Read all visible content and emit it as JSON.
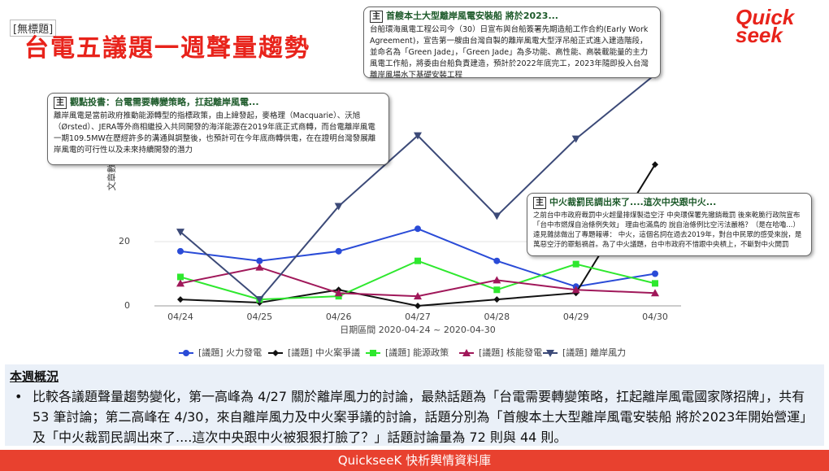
{
  "header": {
    "tag": "[無標題]",
    "title": "台電五議題一週聲量趨勢",
    "logo": "Quick seek"
  },
  "chart_data": {
    "type": "line",
    "categories": [
      "04/24",
      "04/25",
      "04/26",
      "04/27",
      "04/28",
      "04/29",
      "04/30"
    ],
    "ylabel": "文章數",
    "xlabel": "日期區間 2020-04-24 ~ 2020-04-30",
    "ylim": [
      0,
      80
    ],
    "yticks": [
      0,
      20
    ],
    "grid": true,
    "legend": "bottom",
    "series": [
      {
        "name": "[議題] 火力發電",
        "color": "#2a4bd7",
        "marker": "circle",
        "values": [
          17,
          14,
          17,
          24,
          14,
          6,
          10
        ]
      },
      {
        "name": "[議題] 中火案爭議",
        "color": "#111111",
        "marker": "diamond",
        "values": [
          2,
          1,
          5,
          0,
          2,
          4,
          44
        ]
      },
      {
        "name": "[議題] 能源政策",
        "color": "#2ee82e",
        "marker": "square",
        "values": [
          9,
          2,
          3,
          14,
          5,
          13,
          7
        ]
      },
      {
        "name": "[議題] 核能發電",
        "color": "#a0185a",
        "marker": "triangle-up",
        "values": [
          7,
          12,
          4,
          3,
          8,
          5,
          4
        ]
      },
      {
        "name": "[議題] 離岸風力",
        "color": "#3c4a78",
        "marker": "triangle-down",
        "values": [
          23,
          2,
          31,
          53,
          28,
          52,
          72
        ]
      }
    ]
  },
  "callouts": [
    {
      "icon": "主",
      "title": "首艘本土大型離岸風電安裝船 將於2023...",
      "body": "台船環海風電工程公司今（30）日宣布與台船簽署先期造船工作合約(Early Work Agreement)，宣告第一艘由台灣自製的離岸風電大型浮吊船正式進入建造階段，並命名為「Green Jade」，「Green Jade」為多功能、高性能、高裝載能量的主力風電工作船，將委由台船負責建造，預計於2022年底完工，2023年隨即投入台灣離岸風場水下基礎安裝工程"
    },
    {
      "icon": "主",
      "title": "觀點投書：台電需要轉變策略，扛起離岸風電...",
      "body": "離岸風電是當前政府推動能源轉型的指標政策，由上緯發起，麥格理（Macquarie）、沃旭（Ørsted）、JERA等外商相繼投入共同開發的海洋能源在2019年底正式商轉，而台電離岸風電一期109.5MW在歷經許多的溝通與調整後，也預計可在今年底商轉供電，在在證明台灣發展離岸風電的可行性以及未來持續開發的潛力"
    },
    {
      "icon": "主",
      "title": "中火裁罰民調出來了....這次中央跟中火...",
      "body": "之前台中市政府裁罰中火超量排煤製造空汙 中央環保署先撤銷裁罰 後來乾脆行政院宣布「台中市燃煤自治條例失效」 理由也滿鳥的 說自治條例比空污法嚴格？（是在哈嚕...）遠見雜誌做出了專題報導： 中火，這個名詞在過去2019年，對台中民眾的感受來說，是萬惡空汙的罪魁禍首。為了中火議題，台中市政府不惜跟中央槓上，不斷對中火開罰"
    }
  ],
  "summary": {
    "heading": "本週概況",
    "bullet": "比較各議題聲量趨勢變化，第一高峰為 4/27 關於離岸風力的討論，最熱話題為「台電需要轉變策略，扛起離岸風電國家隊招牌」，共有 53 筆討論；第二高峰在 4/30，來自離岸風力及中火案爭議的討論，話題分別為「首艘本土大型離岸風電安裝船 將於2023年開始營運」及「中火裁罰民調出來了....這次中央跟中火被狠狠打臉了？」話題討論量為 72 則與 44 則。"
  },
  "footer": "QuickseeK 快析輿情資料庫"
}
